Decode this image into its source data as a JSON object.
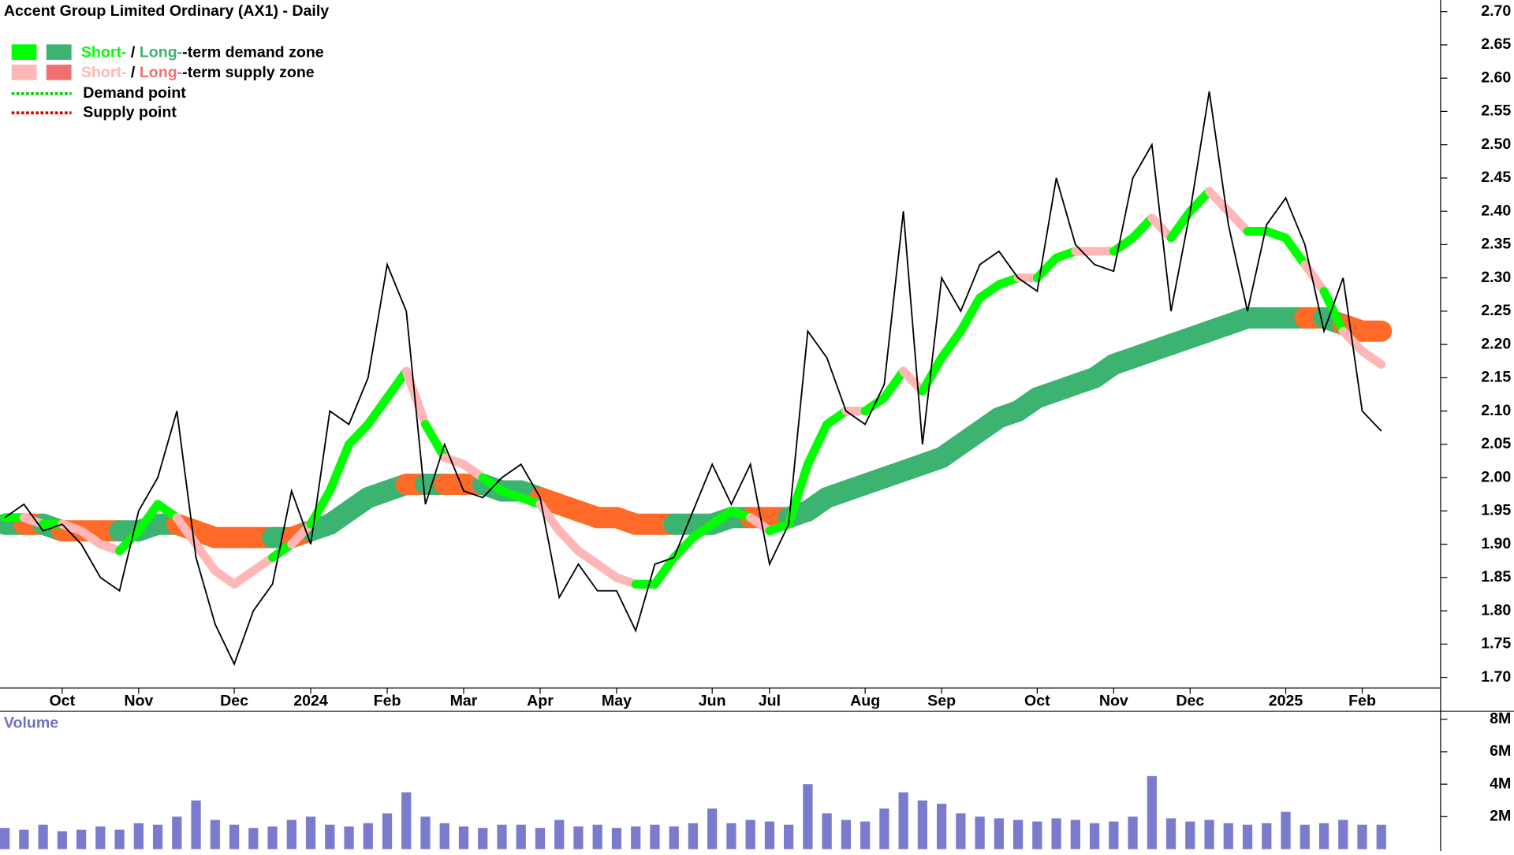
{
  "chart_data": {
    "type": "line",
    "title": "Accent Group Limited Ordinary (AX1) - Daily",
    "categories": [
      null,
      null,
      null,
      "Oct",
      null,
      null,
      null,
      "Nov",
      null,
      null,
      null,
      null,
      "Dec",
      null,
      null,
      null,
      "2024",
      null,
      null,
      null,
      "Feb",
      null,
      null,
      null,
      "Mar",
      null,
      null,
      null,
      "Apr",
      null,
      null,
      null,
      "May",
      null,
      null,
      null,
      null,
      "Jun",
      null,
      null,
      "Jul",
      null,
      null,
      null,
      null,
      "Aug",
      null,
      null,
      null,
      "Sep",
      null,
      null,
      null,
      null,
      "Oct",
      null,
      null,
      null,
      "Nov",
      null,
      null,
      null,
      "Dec",
      null,
      null,
      null,
      null,
      "2025",
      null,
      null,
      null,
      "Feb",
      null
    ],
    "series": [
      {
        "color": "#000000",
        "values": [
          1.94,
          1.96,
          1.92,
          1.93,
          1.9,
          1.85,
          1.83,
          1.95,
          2.0,
          2.1,
          1.88,
          1.78,
          1.72,
          1.8,
          1.84,
          1.98,
          1.9,
          2.1,
          2.08,
          2.15,
          2.32,
          2.25,
          1.96,
          2.05,
          1.98,
          1.97,
          2.0,
          2.02,
          1.97,
          1.82,
          1.87,
          1.83,
          1.83,
          1.77,
          1.87,
          1.88,
          1.95,
          2.02,
          1.96,
          2.02,
          1.87,
          1.93,
          2.22,
          2.18,
          2.1,
          2.08,
          2.14,
          2.4,
          2.05,
          2.3,
          2.25,
          2.32,
          2.34,
          2.3,
          2.28,
          2.45,
          2.35,
          2.32,
          2.31,
          2.45,
          2.5,
          2.25,
          2.4,
          2.58,
          2.38,
          2.25,
          2.38,
          2.42,
          2.35,
          2.22,
          2.3,
          2.1,
          2.07
        ]
      },
      {
        "color": "#00ff00",
        "supply_color": "#ffb6b6",
        "values": [
          1.94,
          1.94,
          1.93,
          1.93,
          1.92,
          1.9,
          1.89,
          1.92,
          1.96,
          1.94,
          1.9,
          1.86,
          1.84,
          1.86,
          1.88,
          1.9,
          1.93,
          1.98,
          2.05,
          2.08,
          2.12,
          2.16,
          2.08,
          2.03,
          2.02,
          2.0,
          1.98,
          1.97,
          1.96,
          1.92,
          1.89,
          1.87,
          1.85,
          1.84,
          1.84,
          1.88,
          1.91,
          1.93,
          1.95,
          1.94,
          1.92,
          1.93,
          2.02,
          2.08,
          2.1,
          2.1,
          2.12,
          2.16,
          2.13,
          2.18,
          2.22,
          2.27,
          2.29,
          2.3,
          2.3,
          2.33,
          2.34,
          2.34,
          2.34,
          2.36,
          2.39,
          2.36,
          2.4,
          2.43,
          2.4,
          2.37,
          2.37,
          2.36,
          2.32,
          2.28,
          2.22,
          2.19,
          2.17
        ]
      },
      {
        "color": "#3cb371",
        "supply_color": "#ff6a28",
        "values": [
          1.93,
          1.93,
          1.93,
          1.92,
          1.92,
          1.92,
          1.92,
          1.92,
          1.93,
          1.93,
          1.92,
          1.91,
          1.91,
          1.91,
          1.91,
          1.91,
          1.92,
          1.93,
          1.95,
          1.97,
          1.98,
          1.99,
          1.99,
          1.99,
          1.99,
          1.99,
          1.98,
          1.98,
          1.97,
          1.96,
          1.95,
          1.94,
          1.94,
          1.93,
          1.93,
          1.93,
          1.93,
          1.93,
          1.94,
          1.94,
          1.94,
          1.94,
          1.95,
          1.97,
          1.98,
          1.99,
          2.0,
          2.01,
          2.02,
          2.03,
          2.05,
          2.07,
          2.09,
          2.1,
          2.12,
          2.13,
          2.14,
          2.15,
          2.17,
          2.18,
          2.19,
          2.2,
          2.21,
          2.22,
          2.23,
          2.24,
          2.24,
          2.24,
          2.24,
          2.24,
          2.23,
          2.22,
          2.22
        ]
      }
    ],
    "ylim": [
      1.67,
      2.72
    ],
    "yticks": [
      {
        "value": 1.7,
        "label": "1.70"
      },
      1.75,
      {
        "value": 1.8,
        "label": "1.80"
      },
      1.85,
      {
        "value": 1.9,
        "label": "1.90"
      },
      1.95,
      {
        "value": 2.0,
        "label": "2.00"
      },
      2.05,
      {
        "value": 2.1,
        "label": "2.10"
      },
      2.15,
      {
        "value": 2.2,
        "label": "2.20"
      },
      2.25,
      {
        "value": 2.3,
        "label": "2.30"
      },
      2.35,
      {
        "value": 2.4,
        "label": "2.40"
      },
      2.45,
      {
        "value": 2.5,
        "label": "2.50"
      },
      2.55,
      {
        "value": 2.6,
        "label": "2.60"
      },
      2.65,
      {
        "value": 2.7,
        "label": "2.70"
      }
    ],
    "legend": [
      {
        "short": "Short-",
        "sep": " / ",
        "long": "Long-",
        "rest": "-term demand zone"
      },
      {
        "short": "Short-",
        "sep": " / ",
        "long": "Long-",
        "rest": "-term supply zone"
      },
      {
        "text": "Demand point"
      },
      {
        "text": "Supply point"
      }
    ],
    "volume": {
      "label": "Volume",
      "color": "#5a5ac0",
      "values": [
        1300000,
        1200000,
        1500000,
        1100000,
        1200000,
        1400000,
        1200000,
        1600000,
        1500000,
        2000000,
        3000000,
        1800000,
        1500000,
        1300000,
        1400000,
        1800000,
        2000000,
        1500000,
        1400000,
        1600000,
        2200000,
        3500000,
        2000000,
        1600000,
        1400000,
        1300000,
        1500000,
        1500000,
        1300000,
        1800000,
        1400000,
        1500000,
        1300000,
        1400000,
        1500000,
        1400000,
        1600000,
        2500000,
        1600000,
        1800000,
        1700000,
        1500000,
        4000000,
        2200000,
        1800000,
        1700000,
        2500000,
        3500000,
        3000000,
        2800000,
        2200000,
        2000000,
        1900000,
        1800000,
        1700000,
        1900000,
        1800000,
        1600000,
        1700000,
        2000000,
        4500000,
        1900000,
        1700000,
        1800000,
        1600000,
        1500000,
        1600000,
        2300000,
        1500000,
        1600000,
        1800000,
        1500000,
        1500000
      ],
      "ylim": [
        0,
        8500000
      ],
      "yticks": [
        {
          "value": 2000000,
          "label": "2M"
        },
        {
          "value": 4000000,
          "label": "4M"
        },
        {
          "value": 6000000,
          "label": "6M"
        },
        {
          "value": 8000000,
          "label": "8M"
        }
      ]
    }
  }
}
